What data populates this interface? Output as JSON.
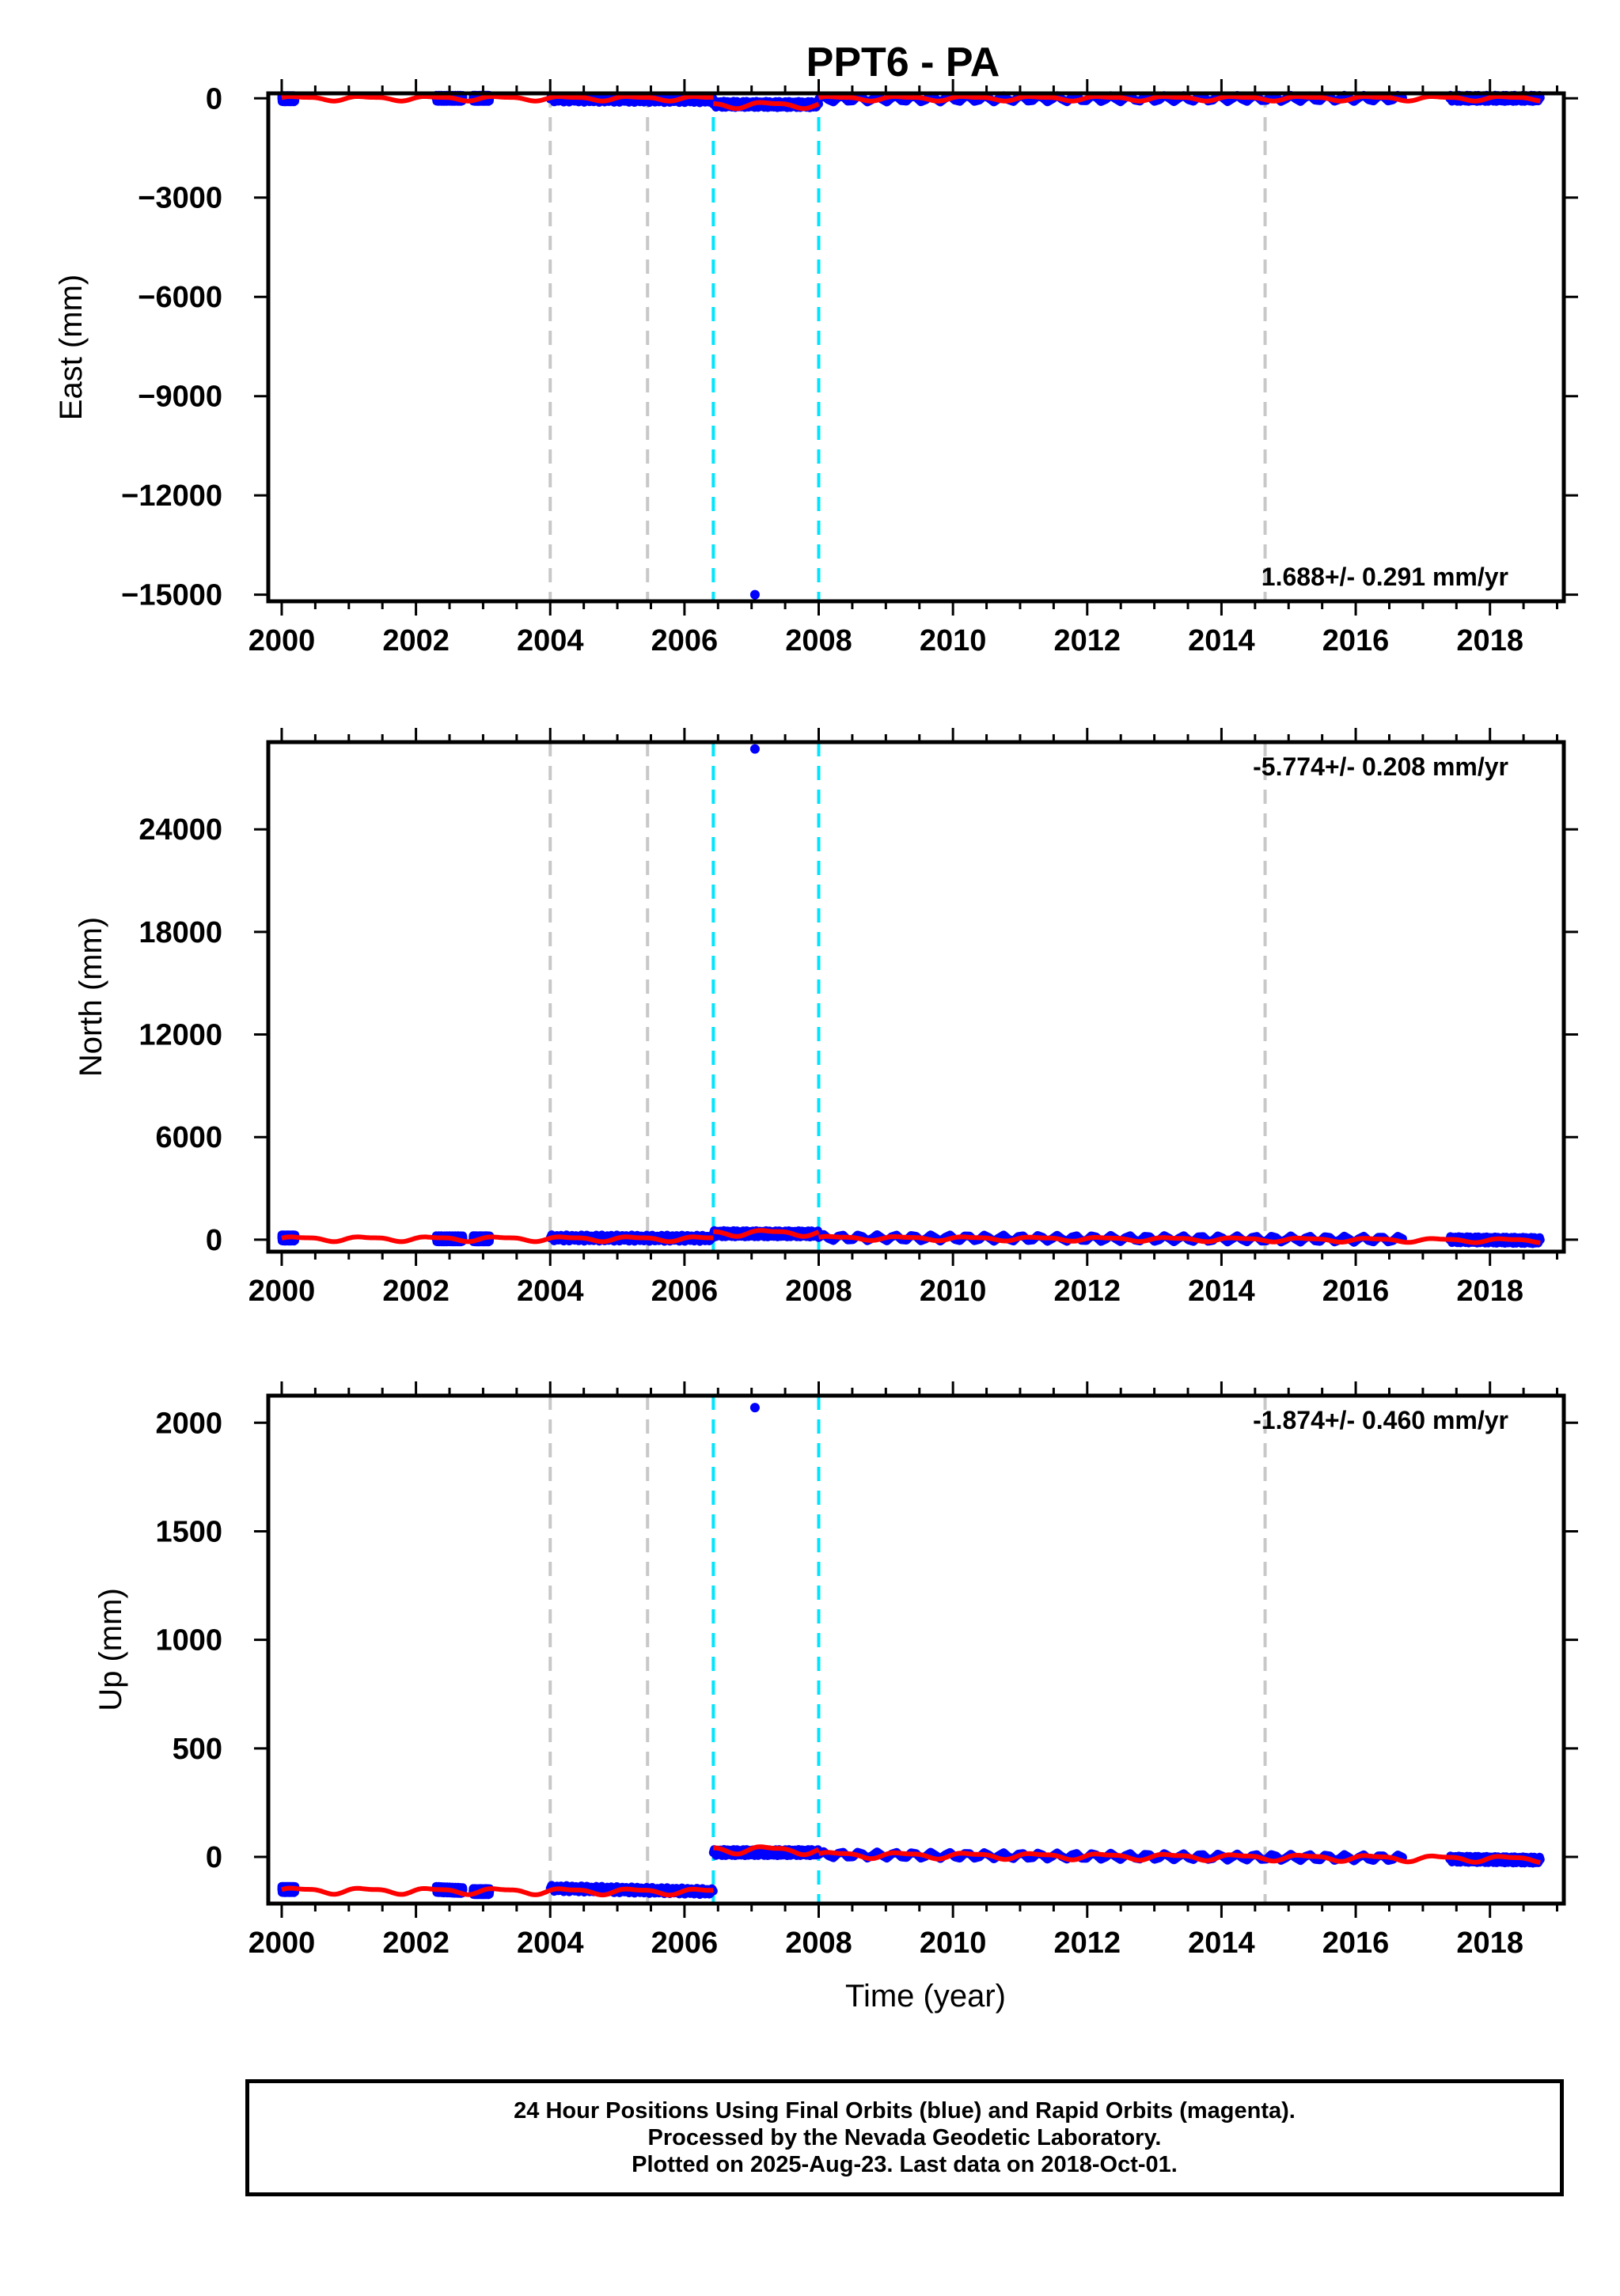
{
  "title": "PPT6 - PA",
  "colors": {
    "final_orbits": "#0000ff",
    "model_fit": "#ff0000",
    "equipment_change": "#c8c8c8",
    "offset_event": "#00e5ff",
    "frame": "#000000"
  },
  "chart_data": [
    {
      "type": "scatter",
      "panel": "east",
      "ylabel": "East (mm)",
      "xlabel": "",
      "xlim": [
        1999.8,
        2019.1
      ],
      "ylim": [
        -15200,
        150
      ],
      "yticks": [
        0,
        -3000,
        -6000,
        -9000,
        -12000,
        -15000
      ],
      "xticks": [
        2000,
        2002,
        2004,
        2006,
        2008,
        2010,
        2012,
        2014,
        2016,
        2018
      ],
      "rate_annotation": "1.688+/- 0.291 mm/yr",
      "outlier": {
        "x": 2007.05,
        "y": -15000
      },
      "vlines_gray": [
        2004.0,
        2005.45,
        2014.65
      ],
      "vlines_cyan": [
        2006.43,
        2008.0
      ],
      "data_segments": [
        {
          "x": [
            2000.0,
            2000.2
          ],
          "y": [
            -10,
            -10
          ]
        },
        {
          "x": [
            2002.3,
            2002.7
          ],
          "y": [
            0,
            0
          ]
        },
        {
          "x": [
            2002.85,
            2003.1
          ],
          "y": [
            0,
            0
          ]
        },
        {
          "x": [
            2004.0,
            2006.43
          ],
          "y": [
            -20,
            -40
          ]
        },
        {
          "x": [
            2006.43,
            2008.0
          ],
          "y": [
            -180,
            -190
          ]
        },
        {
          "x": [
            2008.0,
            2016.7
          ],
          "y": [
            -20,
            0
          ]
        },
        {
          "x": [
            2017.4,
            2018.75
          ],
          "y": [
            0,
            0
          ]
        }
      ],
      "model_segments": [
        {
          "x": [
            2000.0,
            2006.43
          ],
          "y": [
            0,
            0
          ],
          "amp": 60
        },
        {
          "x": [
            2006.43,
            2008.0
          ],
          "y": [
            -200,
            -200
          ],
          "amp": 80
        },
        {
          "x": [
            2008.0,
            2018.75
          ],
          "y": [
            0,
            0
          ],
          "amp": 60
        }
      ]
    },
    {
      "type": "scatter",
      "panel": "north",
      "ylabel": "North (mm)",
      "xlabel": "",
      "xlim": [
        1999.8,
        2019.1
      ],
      "ylim": [
        -700,
        29100
      ],
      "yticks": [
        0,
        6000,
        12000,
        18000,
        24000
      ],
      "xticks": [
        2000,
        2002,
        2004,
        2006,
        2008,
        2010,
        2012,
        2014,
        2016,
        2018
      ],
      "rate_annotation": "-5.774+/- 0.208 mm/yr",
      "outlier": {
        "x": 2007.05,
        "y": 28700
      },
      "vlines_gray": [
        2004.0,
        2005.45,
        2014.65
      ],
      "vlines_cyan": [
        2006.43,
        2008.0
      ],
      "data_segments": [
        {
          "x": [
            2000.0,
            2000.2
          ],
          "y": [
            100,
            100
          ]
        },
        {
          "x": [
            2002.3,
            2002.7
          ],
          "y": [
            50,
            50
          ]
        },
        {
          "x": [
            2002.85,
            2003.1
          ],
          "y": [
            50,
            50
          ]
        },
        {
          "x": [
            2004.0,
            2006.43
          ],
          "y": [
            100,
            80
          ]
        },
        {
          "x": [
            2006.43,
            2008.0
          ],
          "y": [
            350,
            340
          ]
        },
        {
          "x": [
            2008.0,
            2016.7
          ],
          "y": [
            120,
            20
          ]
        },
        {
          "x": [
            2017.4,
            2018.75
          ],
          "y": [
            0,
            -50
          ]
        }
      ],
      "model_segments": [
        {
          "x": [
            2000.0,
            2006.43
          ],
          "y": [
            50,
            50
          ],
          "amp": 120
        },
        {
          "x": [
            2006.43,
            2008.0
          ],
          "y": [
            400,
            400
          ],
          "amp": 150
        },
        {
          "x": [
            2008.0,
            2018.75
          ],
          "y": [
            100,
            -50
          ],
          "amp": 100
        }
      ]
    },
    {
      "type": "scatter",
      "panel": "up",
      "ylabel": "Up (mm)",
      "xlabel": "Time (year)",
      "xlim": [
        1999.8,
        2019.1
      ],
      "ylim": [
        -215,
        2125
      ],
      "yticks": [
        0,
        500,
        1000,
        1500,
        2000
      ],
      "xticks": [
        2000,
        2002,
        2004,
        2006,
        2008,
        2010,
        2012,
        2014,
        2016,
        2018
      ],
      "rate_annotation": "-1.874+/- 0.460 mm/yr",
      "outlier": {
        "x": 2007.05,
        "y": 2070
      },
      "vlines_gray": [
        2004.0,
        2005.45,
        2014.65
      ],
      "vlines_cyan": [
        2006.43,
        2008.0
      ],
      "data_segments": [
        {
          "x": [
            2000.0,
            2000.2
          ],
          "y": [
            -150,
            -150
          ]
        },
        {
          "x": [
            2002.3,
            2002.7
          ],
          "y": [
            -150,
            -155
          ]
        },
        {
          "x": [
            2002.85,
            2003.1
          ],
          "y": [
            -160,
            -160
          ]
        },
        {
          "x": [
            2004.0,
            2006.43
          ],
          "y": [
            -145,
            -160
          ]
        },
        {
          "x": [
            2006.43,
            2008.0
          ],
          "y": [
            20,
            20
          ]
        },
        {
          "x": [
            2008.0,
            2016.7
          ],
          "y": [
            10,
            -5
          ]
        },
        {
          "x": [
            2017.4,
            2018.75
          ],
          "y": [
            -10,
            -15
          ]
        }
      ],
      "model_segments": [
        {
          "x": [
            2000.0,
            2006.43
          ],
          "y": [
            -155,
            -160
          ],
          "amp": 12
        },
        {
          "x": [
            2006.43,
            2008.0
          ],
          "y": [
            35,
            30
          ],
          "amp": 15
        },
        {
          "x": [
            2008.0,
            2018.75
          ],
          "y": [
            10,
            -10
          ],
          "amp": 12
        }
      ]
    }
  ],
  "footer": {
    "line1": "24 Hour Positions Using Final Orbits (blue) and Rapid Orbits (magenta).",
    "line2": "Processed by the Nevada Geodetic Laboratory.",
    "line3": "Plotted on 2025-Aug-23. Last data on 2018-Oct-01."
  }
}
